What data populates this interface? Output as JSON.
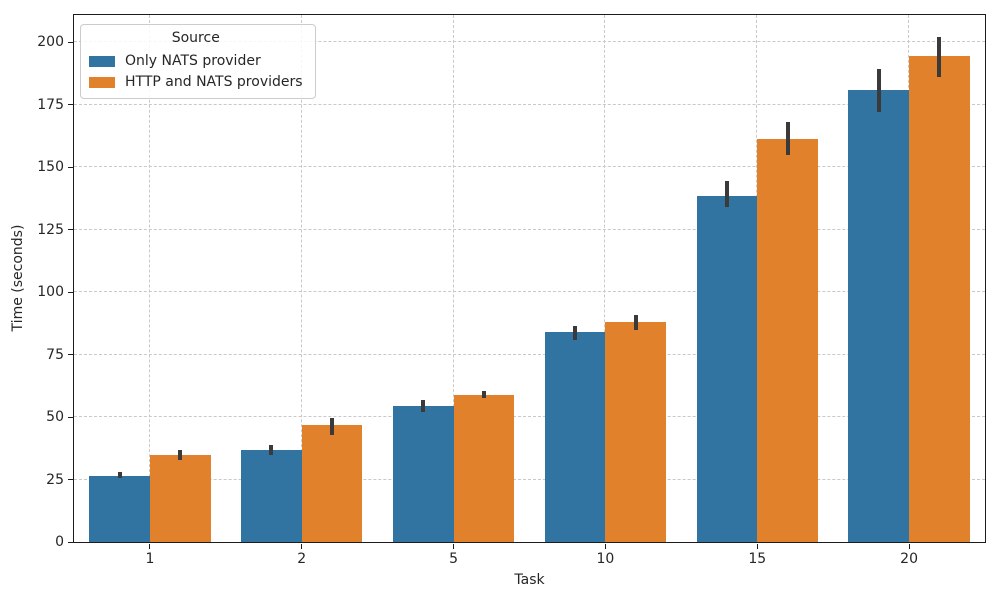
{
  "figure": {
    "background": "#ffffff",
    "grid_color": "#c9c9c9",
    "spine_color": "#1c1c1c",
    "errorbar_color": "#3a3a3a",
    "text_color": "#262626"
  },
  "legend": {
    "title": "Source",
    "entries": [
      {
        "label": "Only NATS provider",
        "color": "#3274a1"
      },
      {
        "label": "HTTP and NATS providers",
        "color": "#e1812c"
      }
    ]
  },
  "chart_data": {
    "type": "bar",
    "title": "",
    "xlabel": "Task",
    "ylabel": "Time (seconds)",
    "categories": [
      "1",
      "2",
      "5",
      "10",
      "15",
      "20"
    ],
    "series": [
      {
        "name": "Only NATS provider",
        "color": "#3274a1",
        "values": [
          26.5,
          37,
          54.5,
          84,
          138.5,
          181
        ],
        "error_low": [
          25.5,
          35,
          52,
          81,
          134,
          172
        ],
        "error_high": [
          28,
          39,
          57,
          86.5,
          144.5,
          189.5
        ]
      },
      {
        "name": "HTTP and NATS providers",
        "color": "#e1812c",
        "values": [
          35,
          47,
          59,
          88,
          161.5,
          194.5
        ],
        "error_low": [
          33,
          43,
          57.5,
          85,
          155,
          186
        ],
        "error_high": [
          37,
          49.5,
          60.5,
          91,
          168,
          202
        ]
      }
    ],
    "ylim": [
      0,
      211
    ],
    "yticks": [
      0,
      25,
      50,
      75,
      100,
      125,
      150,
      175,
      200
    ],
    "grid": true,
    "grid_style": "dashed",
    "legend_position": "upper left",
    "bar_group_width_fraction": 0.8,
    "error_bars": true
  }
}
